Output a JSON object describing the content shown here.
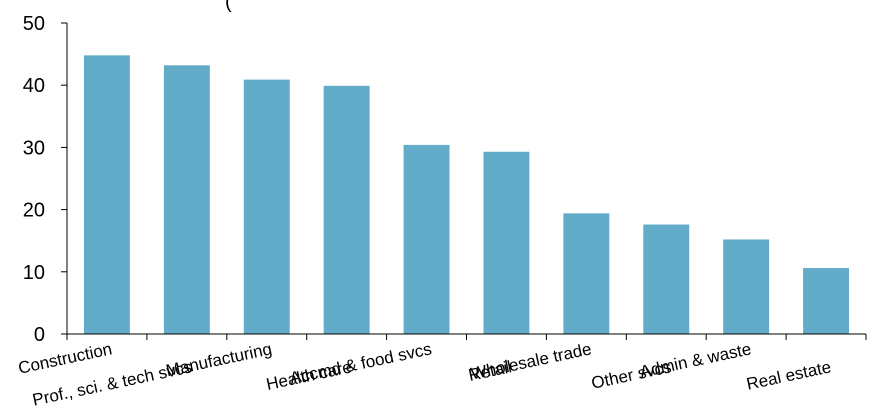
{
  "chart_data": {
    "type": "bar",
    "title_partial": "(",
    "categories": [
      "Construction",
      "Prof., sci. & tech svcs",
      "Manufacturing",
      "Health care",
      "Accmd & food svcs",
      "Retail",
      "Wholesale trade",
      "Other svcs",
      "Admin & waste",
      "Real estate"
    ],
    "values": [
      44.8,
      43.2,
      40.9,
      39.9,
      30.4,
      29.3,
      19.4,
      17.6,
      15.2,
      10.6
    ],
    "ylim": [
      0,
      50
    ],
    "yticks": [
      "0",
      "10",
      "20",
      "30",
      "40",
      "50"
    ],
    "bar_color": "#62ABC9",
    "axis_color": "#000000",
    "grid": false
  }
}
